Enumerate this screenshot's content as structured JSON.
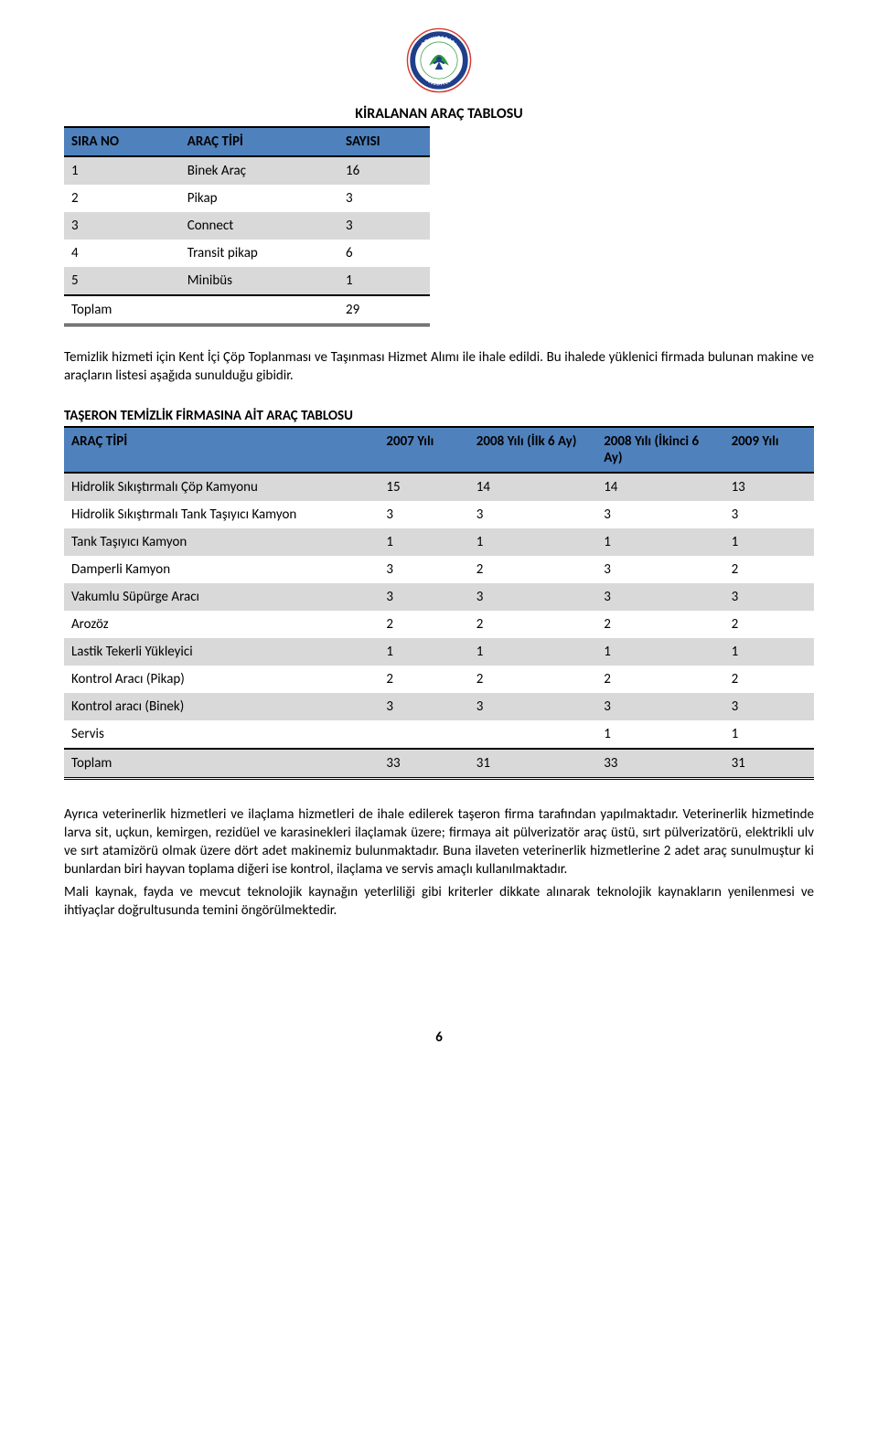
{
  "logo": {
    "outer_text_top": "ODUNPAZARI",
    "outer_text_bottom": "BELEDİYESİ",
    "ring_color": "#1f3f8a",
    "leaf_color": "#2b9a3e",
    "figure_color": "#1f3f8a",
    "accent_color": "#d43a2f"
  },
  "table1": {
    "title": "KİRALANAN ARAÇ TABLOSU",
    "header_bg": "#4f81bd",
    "row_odd_bg": "#d9d9d9",
    "row_even_bg": "#ffffff",
    "columns": [
      "SIRA NO",
      "ARAÇ TİPİ",
      "SAYISI"
    ],
    "rows": [
      [
        "1",
        "Binek Araç",
        "16"
      ],
      [
        "2",
        "Pikap",
        "3"
      ],
      [
        "3",
        "Connect",
        "3"
      ],
      [
        "4",
        "Transit pikap",
        "6"
      ],
      [
        "5",
        "Minibüs",
        "1"
      ]
    ],
    "total": [
      "Toplam",
      "",
      "29"
    ]
  },
  "paragraph1": "Temizlik hizmeti için Kent İçi Çöp Toplanması ve Taşınması Hizmet Alımı ile ihale edildi. Bu ihalede yüklenici firmada bulunan makine ve araçların listesi aşağıda sunulduğu gibidir.",
  "table2": {
    "title": "TAŞERON TEMİZLİK FİRMASINA AİT ARAÇ TABLOSU",
    "header_bg": "#4f81bd",
    "row_odd_bg": "#d9d9d9",
    "row_even_bg": "#ffffff",
    "columns": [
      "ARAÇ TİPİ",
      "2007 Yılı",
      "2008 Yılı (İlk 6 Ay)",
      "2008 Yılı (İkinci 6 Ay)",
      "2009 Yılı"
    ],
    "rows": [
      [
        "Hidrolik Sıkıştırmalı Çöp Kamyonu",
        "15",
        "14",
        "14",
        "13"
      ],
      [
        "Hidrolik Sıkıştırmalı Tank Taşıyıcı Kamyon",
        "3",
        "3",
        "3",
        "3"
      ],
      [
        "Tank Taşıyıcı Kamyon",
        "1",
        "1",
        "1",
        "1"
      ],
      [
        "Damperli Kamyon",
        "3",
        "2",
        "3",
        "2"
      ],
      [
        "Vakumlu Süpürge Aracı",
        "3",
        "3",
        "3",
        "3"
      ],
      [
        "Arozöz",
        "2",
        "2",
        "2",
        "2"
      ],
      [
        "Lastik Tekerli Yükleyici",
        "1",
        "1",
        "1",
        "1"
      ],
      [
        "Kontrol Aracı (Pikap)",
        "2",
        "2",
        "2",
        "2"
      ],
      [
        "Kontrol aracı (Binek)",
        "3",
        "3",
        "3",
        "3"
      ],
      [
        "Servis",
        "",
        "",
        "1",
        "1"
      ]
    ],
    "total": [
      "Toplam",
      "33",
      "31",
      "33",
      "31"
    ]
  },
  "paragraph2": "Ayrıca veterinerlik hizmetleri ve ilaçlama hizmetleri de ihale edilerek taşeron firma tarafından yapılmaktadır. Veterinerlik hizmetinde larva sit, uçkun, kemirgen, rezidüel ve karasinekleri ilaçlamak üzere; firmaya ait pülverizatör araç üstü, sırt pülverizatörü, elektrikli ulv ve sırt atamizörü olmak üzere dört adet makinemiz bulunmaktadır. Buna ilaveten veterinerlik hizmetlerine 2 adet araç sunulmuştur ki bunlardan biri hayvan toplama diğeri ise kontrol, ilaçlama ve servis amaçlı kullanılmaktadır.",
  "paragraph3": "Mali kaynak, fayda ve mevcut teknolojik kaynağın yeterliliği gibi kriterler dikkate alınarak teknolojik kaynakların yenilenmesi ve ihtiyaçlar doğrultusunda temini öngörülmektedir.",
  "page_number": "6"
}
